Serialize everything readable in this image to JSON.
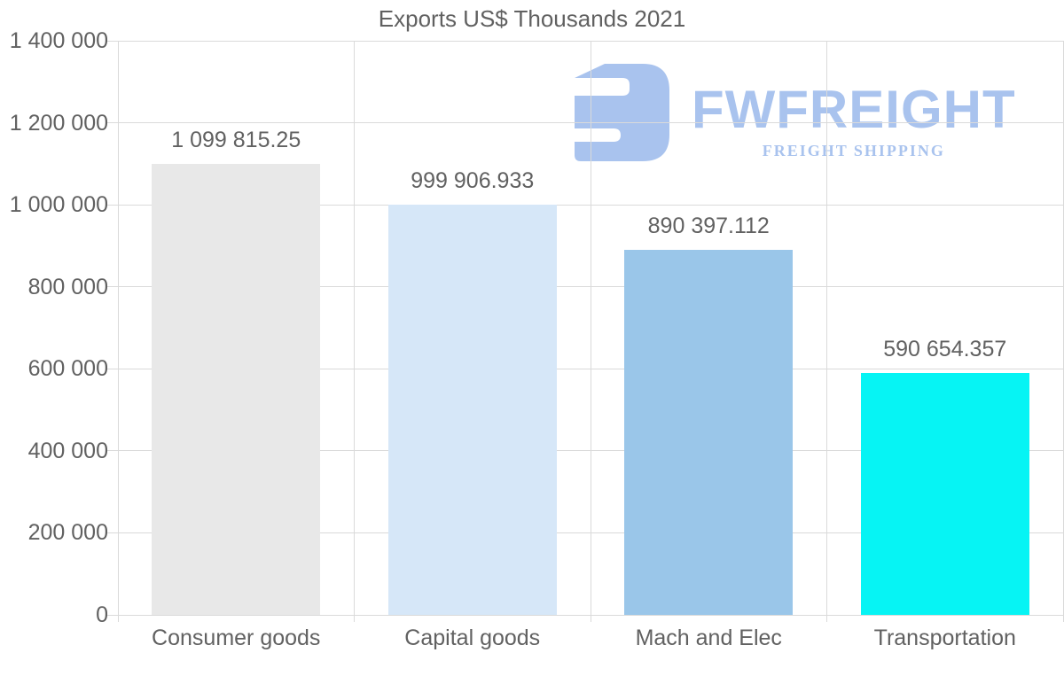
{
  "chart_data": {
    "type": "bar",
    "title": "Exports US$ Thousands 2021",
    "categories": [
      "Consumer goods",
      "Capital goods",
      "Mach and Elec",
      "Transportation"
    ],
    "values": [
      1099815.25,
      999906.933,
      890397.112,
      590654.357
    ],
    "value_labels": [
      "1 099 815.25",
      "999 906.933",
      "890 397.112",
      "590 654.357"
    ],
    "bar_colors": [
      "#e8e8e8",
      "#d6e7f8",
      "#9ac6e9",
      "#06f4f4"
    ],
    "xlabel": "",
    "ylabel": "",
    "ylim": [
      0,
      1400000
    ],
    "ytick_step": 200000,
    "ytick_labels": [
      "0",
      "200 000",
      "400 000",
      "600 000",
      "800 000",
      "1 000 000",
      "1 200 000",
      "1 400 000"
    ],
    "grid": true,
    "legend": null
  },
  "watermark": {
    "brand": "FWFREIGHT",
    "tagline": "FREIGHT SHIPPING",
    "color": "#a9c3ee",
    "icon": "fwfreight-logo-mark"
  },
  "colors": {
    "background": "#ffffff",
    "grid": "#dadada",
    "text": "#616161"
  }
}
